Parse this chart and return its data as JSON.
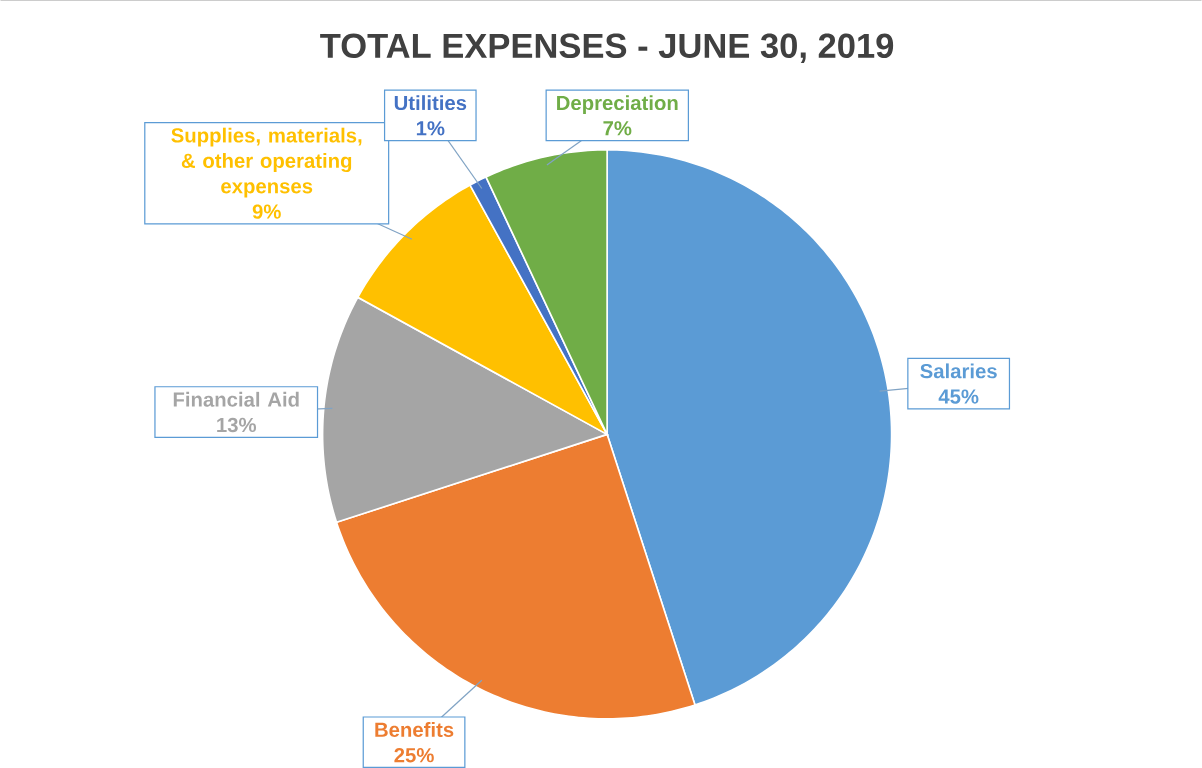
{
  "chart_data": {
    "type": "pie",
    "title": "TOTAL EXPENSES - JUNE 30, 2019",
    "categories": [
      "Salaries",
      "Benefits",
      "Financial Aid",
      "Supplies, materials, & other operating expenses",
      "Utilities",
      "Depreciation"
    ],
    "values": [
      45,
      25,
      13,
      9,
      1,
      7
    ],
    "value_labels": [
      "45%",
      "25%",
      "13%",
      "9%",
      "1%",
      "7%"
    ],
    "colors": [
      "#5b9bd5",
      "#ed7d31",
      "#a5a5a5",
      "#ffc000",
      "#4472c4",
      "#70ad47"
    ],
    "legend": false
  }
}
